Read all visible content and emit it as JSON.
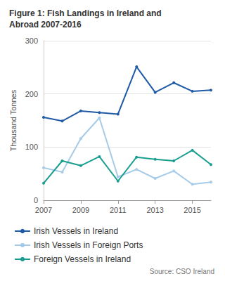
{
  "chart_data": {
    "type": "line",
    "title": "Figure 1: Fish Landings in Ireland and Abroad 2007-2016",
    "y_label": "Thousand Tonnes",
    "source": "Source: CSO Ireland",
    "x": [
      2007,
      2008,
      2009,
      2010,
      2011,
      2012,
      2013,
      2014,
      2015,
      2016
    ],
    "xlim": [
      2007,
      2016
    ],
    "xticks": [
      2007,
      2009,
      2011,
      2013,
      2015
    ],
    "ylim": [
      0,
      300
    ],
    "yticks": [
      0,
      100,
      200,
      300
    ],
    "grid": true,
    "legend": "bottom",
    "series": [
      {
        "name": "Irish Vessels in Ireland",
        "color": "#1f5aa6",
        "marker": "circle",
        "values": [
          156,
          149,
          168,
          165,
          162,
          251,
          203,
          221,
          205,
          207
        ]
      },
      {
        "name": "Irish Vessels in Foreign Ports",
        "color": "#a6cbe8",
        "marker": "circle",
        "values": [
          61,
          53,
          116,
          155,
          44,
          58,
          41,
          55,
          30,
          34
        ]
      },
      {
        "name": "Foreign Vessels in Ireland",
        "color": "#1a9e8f",
        "marker": "circle",
        "values": [
          32,
          74,
          65,
          82,
          36,
          81,
          77,
          74,
          94,
          67
        ]
      }
    ]
  }
}
